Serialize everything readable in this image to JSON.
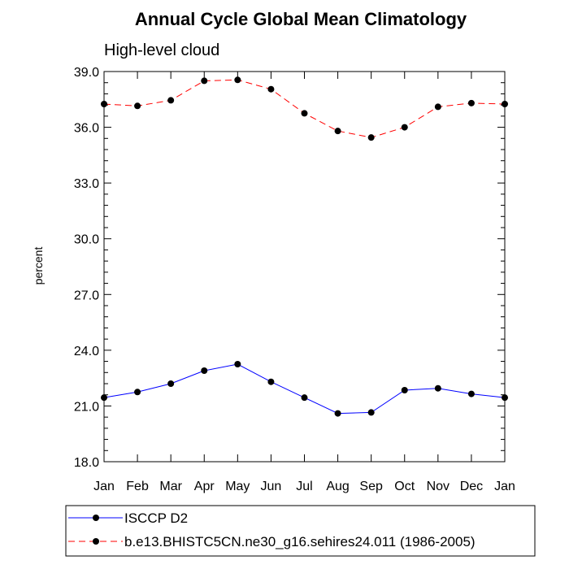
{
  "chart_data": {
    "type": "line",
    "title": "Annual Cycle Global Mean Climatology",
    "subtitle": "High-level cloud",
    "xlabel": "",
    "ylabel": "percent",
    "categories": [
      "Jan",
      "Feb",
      "Mar",
      "Apr",
      "May",
      "Jun",
      "Jul",
      "Aug",
      "Sep",
      "Oct",
      "Nov",
      "Dec",
      "Jan"
    ],
    "ylim": [
      18.0,
      39.0
    ],
    "yticks": [
      "18.0",
      "21.0",
      "24.0",
      "27.0",
      "30.0",
      "33.0",
      "36.0",
      "39.0"
    ],
    "grid": false,
    "legend_position": "bottom",
    "series": [
      {
        "name": "ISCCP D2",
        "color": "#0000ff",
        "line_style": "solid",
        "marker": "filled-circle",
        "values": [
          21.45,
          21.75,
          22.2,
          22.9,
          23.25,
          22.3,
          21.45,
          20.6,
          20.65,
          21.85,
          21.95,
          21.65,
          21.45
        ]
      },
      {
        "name": "b.e13.BHISTC5CN.ne30_g16.sehires24.011 (1986-2005)",
        "color": "#ff0000",
        "line_style": "dashed",
        "marker": "filled-circle",
        "values": [
          37.25,
          37.15,
          37.45,
          38.5,
          38.55,
          38.05,
          36.75,
          35.8,
          35.45,
          36.0,
          37.1,
          37.3,
          37.25
        ]
      }
    ]
  }
}
